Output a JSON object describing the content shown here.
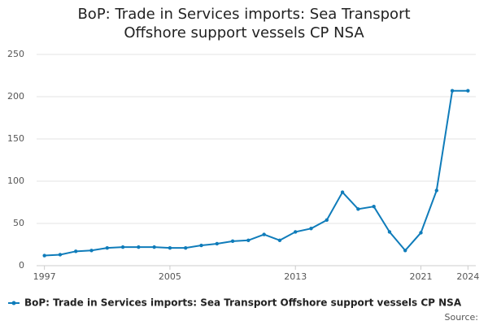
{
  "chart_data": {
    "type": "line",
    "title": "BoP: Trade in Services imports: Sea Transport Offshore support vessels CP NSA",
    "source": "Source:",
    "x": [
      1997,
      1998,
      1999,
      2000,
      2001,
      2002,
      2003,
      2004,
      2005,
      2006,
      2007,
      2008,
      2009,
      2010,
      2011,
      2012,
      2013,
      2014,
      2015,
      2016,
      2017,
      2018,
      2019,
      2020,
      2021,
      2022,
      2023,
      2024
    ],
    "series": [
      {
        "name": "BoP: Trade in Services imports: Sea Transport Offshore support vessels CP NSA",
        "color": "#0f7cba",
        "values": [
          12,
          13,
          17,
          18,
          21,
          22,
          22,
          22,
          21,
          21,
          24,
          26,
          29,
          30,
          37,
          30,
          40,
          44,
          54,
          87,
          67,
          70,
          40,
          18,
          39,
          89,
          207,
          207
        ]
      }
    ],
    "xlim": [
      1996.5,
      2024.5
    ],
    "xticks": [
      1997,
      2005,
      2013,
      2021,
      2024
    ],
    "ylim": [
      0,
      250
    ],
    "yticks": [
      0,
      50,
      100,
      150,
      200,
      250
    ],
    "grid": true
  }
}
